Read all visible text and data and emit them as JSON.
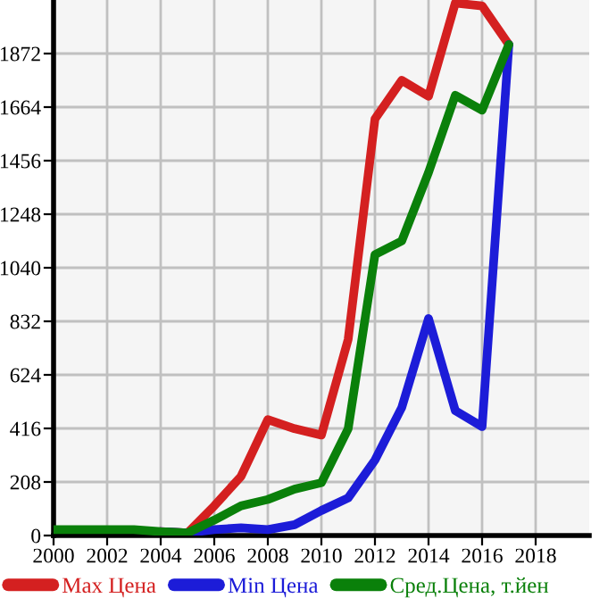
{
  "chart_data": {
    "type": "line",
    "x": [
      2000,
      2001,
      2002,
      2003,
      2004,
      2005,
      2006,
      2007,
      2008,
      2009,
      2010,
      2011,
      2012,
      2013,
      2014,
      2015,
      2016,
      2017
    ],
    "series": [
      {
        "name": "Max Цена",
        "color": "#d42020",
        "values": [
          null,
          null,
          null,
          null,
          15,
          10,
          115,
          230,
          450,
          415,
          390,
          762,
          1618,
          1768,
          1706,
          2068,
          2057,
          1907
        ]
      },
      {
        "name": "Min Цена",
        "color": "#1c1cd8",
        "values": [
          null,
          null,
          null,
          null,
          15,
          10,
          23,
          30,
          23,
          42,
          97,
          146,
          293,
          497,
          843,
          485,
          423,
          1907
        ]
      },
      {
        "name": "Сред.Цена, т.йен",
        "color": "#0a800a",
        "values": [
          23,
          23,
          23,
          23,
          15,
          10,
          60,
          115,
          140,
          180,
          205,
          415,
          1091,
          1144,
          1410,
          1710,
          1652,
          1907
        ]
      }
    ],
    "xlim": [
      2000,
      2020
    ],
    "xticks": [
      2000,
      2002,
      2004,
      2006,
      2008,
      2010,
      2012,
      2014,
      2016,
      2018
    ],
    "ylim": [
      0,
      2080
    ],
    "yticks": [
      0,
      208,
      416,
      624,
      832,
      1040,
      1248,
      1456,
      1664,
      1872
    ],
    "grid": true,
    "legend": "bottom",
    "marker": "none",
    "line_style": "solid"
  }
}
